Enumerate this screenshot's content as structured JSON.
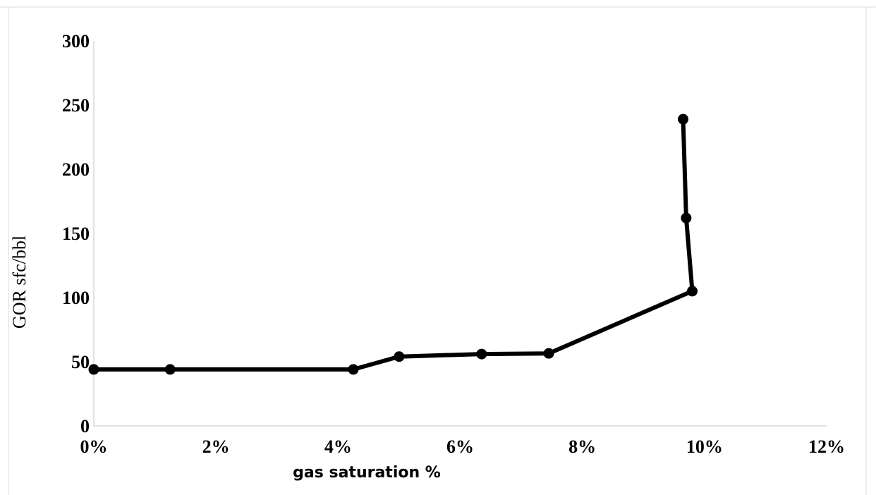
{
  "chart_data": {
    "type": "line",
    "title": "",
    "xlabel": "gas saturation %",
    "ylabel": "GOR  sfc/bbl",
    "xlim": [
      0,
      12
    ],
    "ylim": [
      0,
      300
    ],
    "x_ticks": [
      "0%",
      "2%",
      "4%",
      "6%",
      "8%",
      "10%",
      "12%"
    ],
    "y_ticks": [
      "0",
      "50",
      "100",
      "150",
      "200",
      "250",
      "300"
    ],
    "grid": false,
    "legend": "none",
    "series": [
      {
        "color": "#000000",
        "marker": "circle",
        "x": [
          0.0,
          1.25,
          4.25,
          5.0,
          6.35,
          7.45,
          9.8,
          9.7,
          9.65
        ],
        "y": [
          44,
          44,
          44,
          54,
          56,
          56.5,
          105,
          162,
          239
        ]
      }
    ]
  }
}
